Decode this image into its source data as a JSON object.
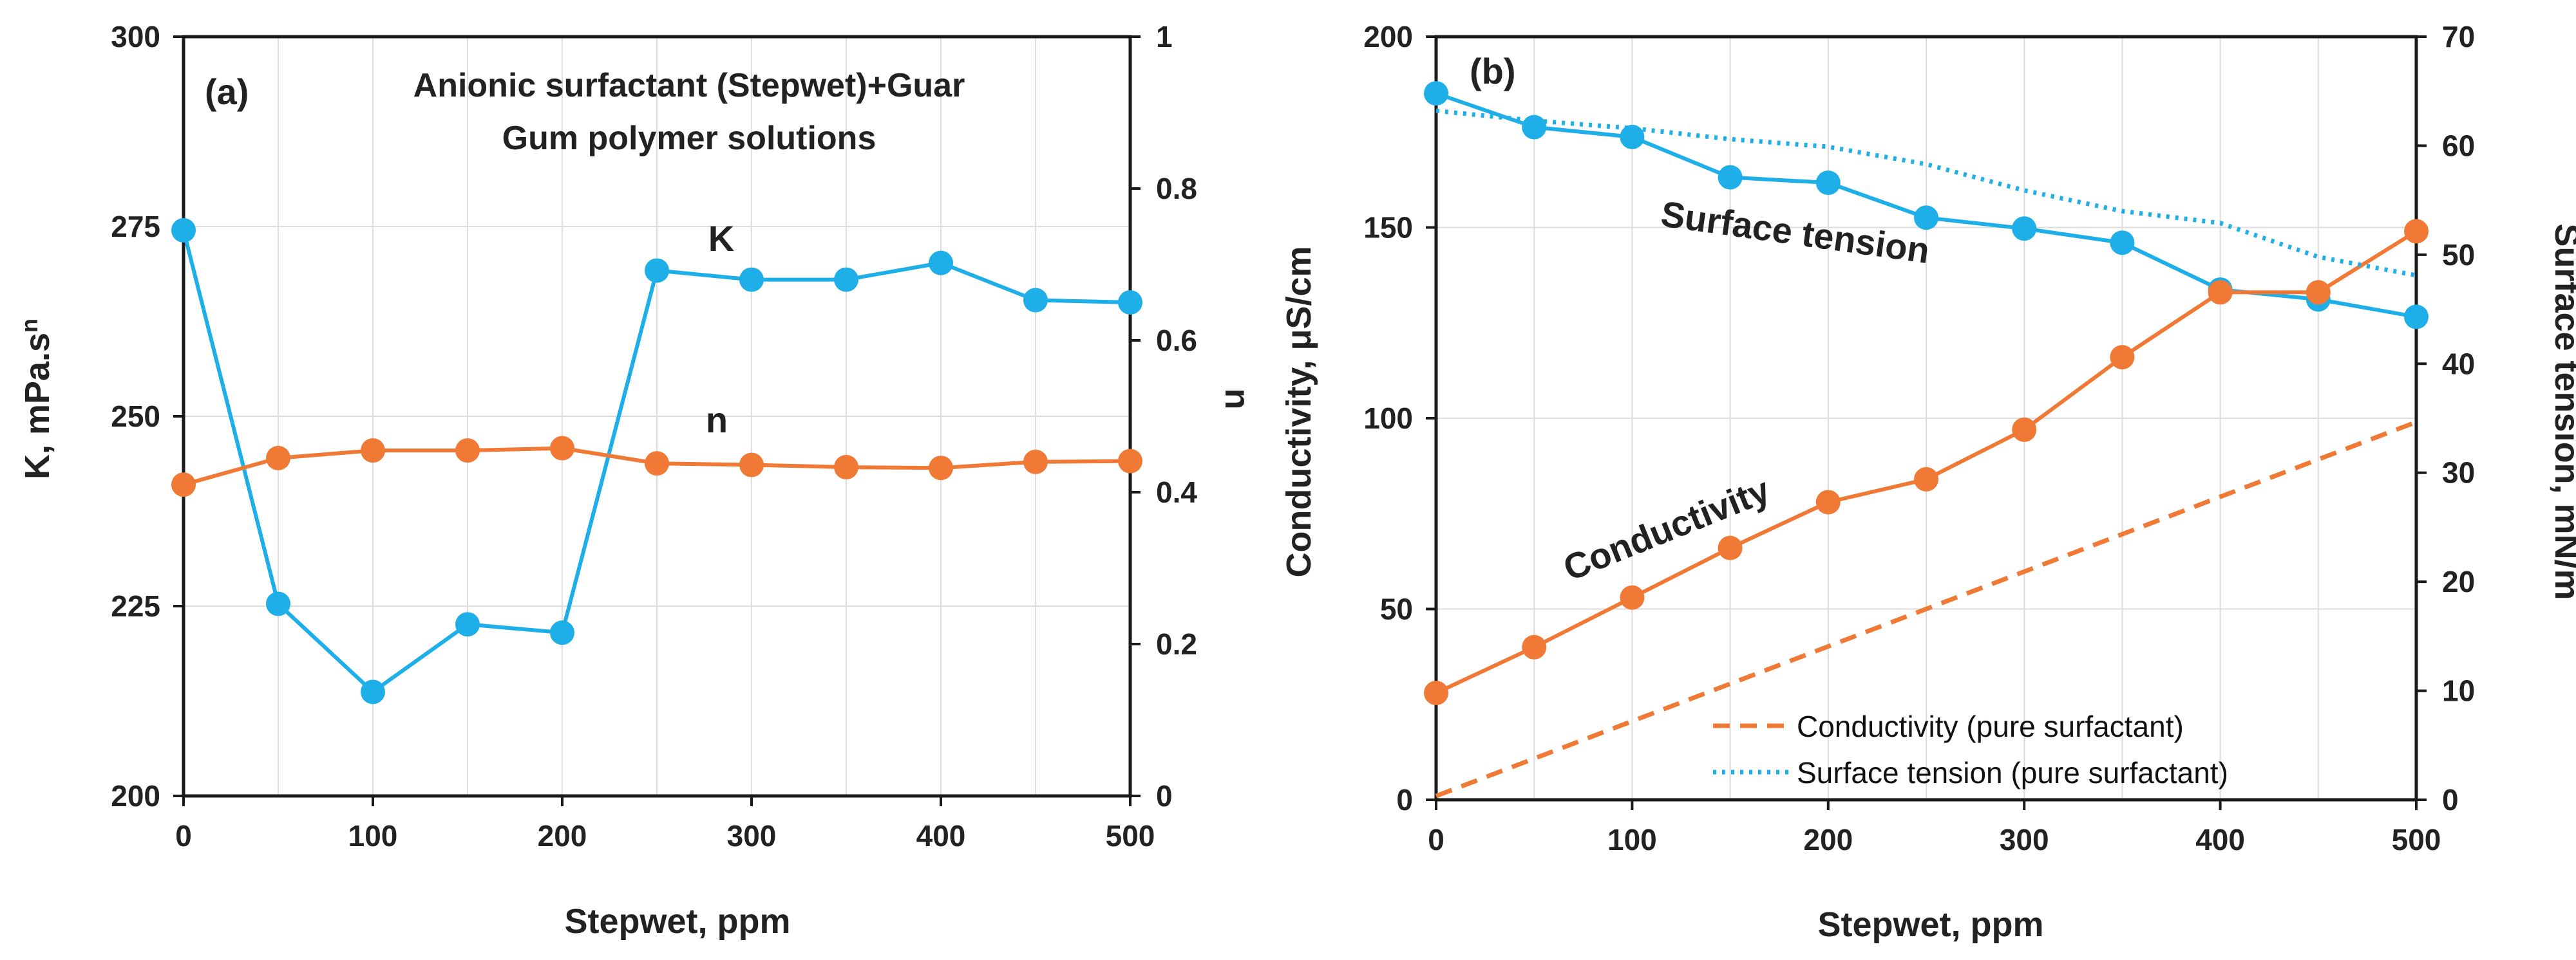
{
  "colors": {
    "blue": "#1eaee8",
    "orange": "#f07a35",
    "axis": "#1a1a1a",
    "grid": "#dddddd"
  },
  "chart_data": [
    {
      "panel": "(a)",
      "type": "line",
      "title_lines": [
        "Anionic surfactant (Stepwet)+Guar",
        "Gum polymer solutions"
      ],
      "xlabel": "Stepwet, ppm",
      "ylabel_left": "K, mPa.s",
      "ylabel_left_sup": "n",
      "ylabel_right": "n",
      "xlim": [
        0,
        500
      ],
      "ylim_left": [
        200,
        300
      ],
      "ylim_right": [
        0,
        1
      ],
      "x_ticks": [
        0,
        100,
        200,
        300,
        400,
        500
      ],
      "y_left_ticks": [
        200,
        225,
        250,
        275,
        300
      ],
      "y_right_ticks": [
        0,
        0.2,
        0.4,
        0.6,
        0.8,
        1
      ],
      "y_right_tick_labels": [
        "0",
        "0.2",
        "0.4",
        "0.6",
        "0.8",
        "1"
      ],
      "grid": true,
      "series": [
        {
          "name": "K",
          "axis": "left",
          "color": "blue",
          "style": "solid",
          "markers": true,
          "x": [
            0,
            50,
            100,
            150,
            200,
            250,
            300,
            350,
            400,
            450,
            500
          ],
          "y": [
            274.5,
            225.3,
            213.7,
            222.6,
            221.5,
            269.2,
            268.0,
            268.0,
            270.2,
            265.3,
            265.0
          ]
        },
        {
          "name": "n",
          "axis": "right",
          "color": "orange",
          "style": "solid",
          "markers": true,
          "x": [
            0,
            50,
            100,
            150,
            200,
            250,
            300,
            350,
            400,
            450,
            500
          ],
          "y": [
            0.41,
            0.445,
            0.455,
            0.455,
            0.458,
            0.438,
            0.436,
            0.433,
            0.432,
            0.44,
            0.441
          ]
        }
      ]
    },
    {
      "panel": "(b)",
      "type": "line",
      "xlabel": "Stepwet, ppm",
      "ylabel_left": "Conductivity, μS/cm",
      "ylabel_right": "Surface tension, mN/m",
      "xlim": [
        0,
        500
      ],
      "ylim_left": [
        0,
        200
      ],
      "ylim_right": [
        0,
        70
      ],
      "x_ticks": [
        0,
        100,
        200,
        300,
        400,
        500
      ],
      "y_left_ticks": [
        0,
        50,
        100,
        150,
        200
      ],
      "y_right_ticks": [
        0,
        10,
        20,
        30,
        40,
        50,
        60,
        70
      ],
      "grid": true,
      "series": [
        {
          "name": "Surface tension",
          "axis": "right",
          "color": "blue",
          "style": "solid",
          "markers": true,
          "x": [
            0,
            50,
            100,
            150,
            200,
            250,
            300,
            350,
            400,
            450,
            500
          ],
          "y": [
            64.8,
            61.7,
            60.8,
            57.1,
            56.6,
            53.4,
            52.4,
            51.1,
            46.8,
            45.9,
            44.3
          ]
        },
        {
          "name": "Conductivity",
          "axis": "left",
          "color": "orange",
          "style": "solid",
          "markers": true,
          "x": [
            0,
            50,
            100,
            150,
            200,
            250,
            300,
            350,
            400,
            450,
            500
          ],
          "y": [
            28,
            40,
            53,
            66,
            78,
            84,
            97,
            116,
            133,
            133,
            149
          ]
        },
        {
          "name": "Conductivity (pure surfactant)",
          "axis": "left",
          "color": "orange",
          "style": "dashed",
          "markers": false,
          "x": [
            0,
            500
          ],
          "y": [
            1,
            99
          ]
        },
        {
          "name": "Surface tension (pure surfactant)",
          "axis": "right",
          "color": "blue",
          "style": "dotted",
          "markers": false,
          "x": [
            0,
            50,
            100,
            150,
            200,
            250,
            300,
            350,
            400,
            450,
            500
          ],
          "y": [
            63.2,
            62.3,
            61.6,
            60.6,
            59.9,
            58.3,
            55.9,
            54.0,
            52.9,
            49.8,
            48.1
          ]
        }
      ],
      "legend": {
        "position": "bottom-right",
        "entries": [
          "Conductivity (pure surfactant)",
          "Surface tension (pure surfactant)"
        ]
      }
    }
  ]
}
